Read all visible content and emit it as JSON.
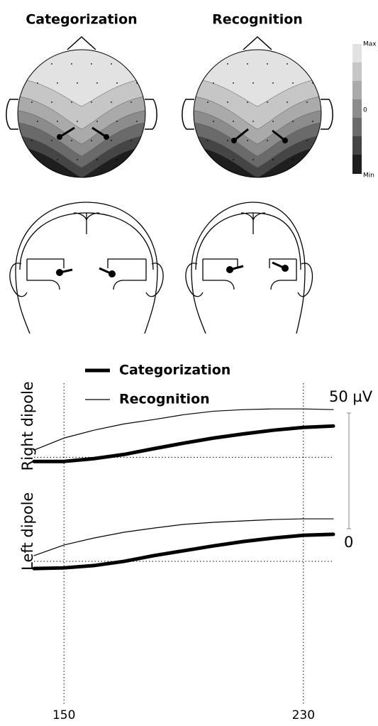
{
  "topomaps": {
    "titles": [
      "Categorization",
      "Recognition"
    ],
    "colorbar": {
      "max_label": "Max",
      "zero_label": "0",
      "min_label": "Min"
    }
  },
  "chart_data": {
    "type": "line",
    "x": [
      140,
      150,
      160,
      170,
      180,
      190,
      200,
      210,
      220,
      230,
      240
    ],
    "xlim": [
      140,
      240
    ],
    "xticks": [
      150,
      230
    ],
    "panels": [
      {
        "label": "Right dipole",
        "ylim": [
          -5,
          32
        ]
      },
      {
        "label": "Left dipole",
        "ylim": [
          -5,
          31
        ]
      }
    ],
    "series": [
      {
        "name": "Categorization",
        "color": "#000000",
        "line_width": 5,
        "values": [
          [
            -1.8,
            -1.8,
            -0.6,
            1.2,
            3.7,
            6.1,
            8.3,
            10.1,
            11.7,
            12.9,
            13.5
          ],
          [
            -3.1,
            -2.8,
            -1.8,
            0,
            2.5,
            4.6,
            6.7,
            8.6,
            10.1,
            11.3,
            11.7
          ]
        ]
      },
      {
        "name": "Recognition",
        "color": "#000000",
        "line_width": 1.2,
        "values": [
          [
            3.1,
            8.3,
            11.7,
            14.4,
            16.3,
            18.4,
            19.9,
            20.6,
            20.9,
            20.9,
            20.6
          ],
          [
            2.5,
            7.1,
            10.1,
            12.6,
            14.4,
            16.0,
            16.9,
            17.5,
            18.1,
            18.4,
            18.4
          ]
        ]
      }
    ],
    "scale_bar": {
      "value": 50,
      "label": "50 µV",
      "zero_label": "0"
    }
  }
}
